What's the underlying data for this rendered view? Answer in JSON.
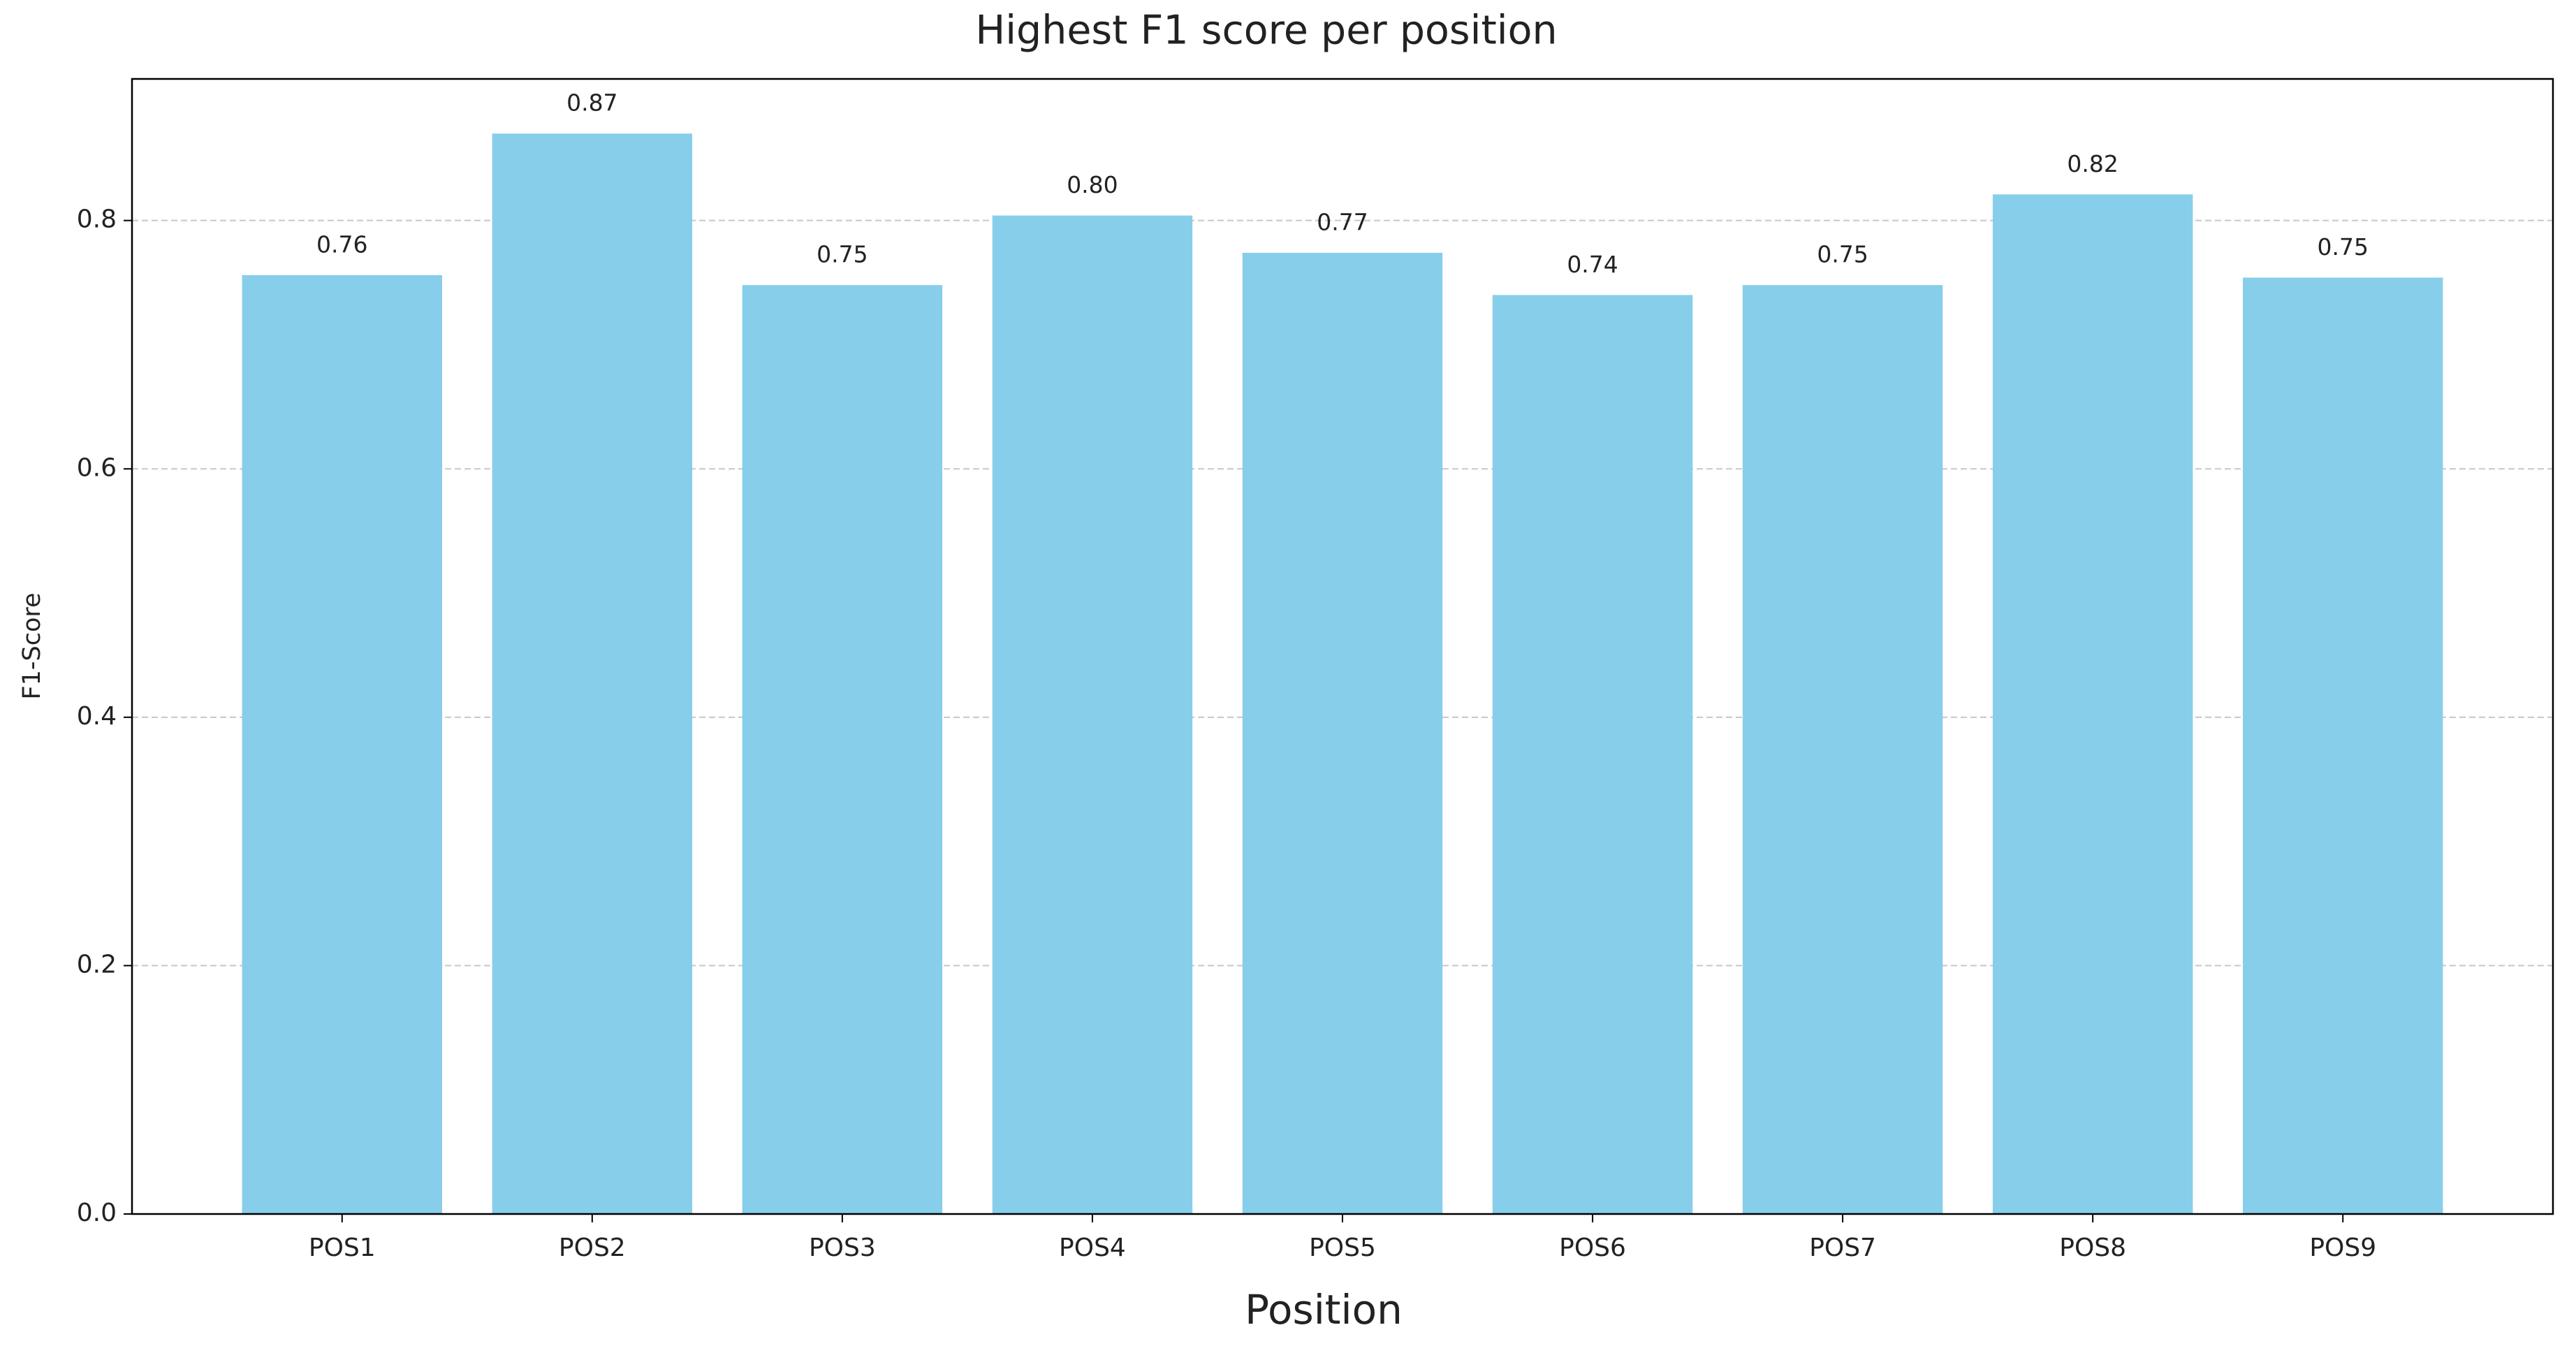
{
  "chart_data": {
    "type": "bar",
    "title": "Highest F1 score per position",
    "x_label": "Position",
    "y_label": "F1-Score",
    "categories": [
      "POS1",
      "POS2",
      "POS3",
      "POS4",
      "POS5",
      "POS6",
      "POS7",
      "POS8",
      "POS9"
    ],
    "values": [
      0.756,
      0.87,
      0.748,
      0.804,
      0.774,
      0.74,
      0.748,
      0.821,
      0.754
    ],
    "value_labels": [
      "0.76",
      "0.87",
      "0.75",
      "0.80",
      "0.77",
      "0.74",
      "0.75",
      "0.82",
      "0.75"
    ],
    "color": "#87ceeb",
    "ylim": [
      0,
      0.914
    ],
    "yticks": [
      {
        "value": 0,
        "label": "0.0"
      },
      0.2,
      0.4,
      0.6,
      0.8
    ],
    "grid": true
  }
}
